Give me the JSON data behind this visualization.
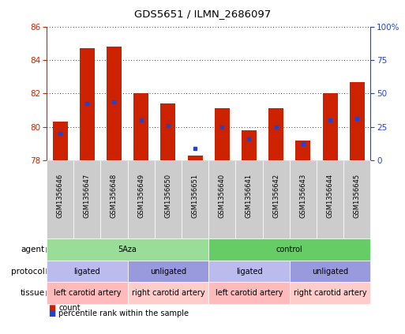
{
  "title": "GDS5651 / ILMN_2686097",
  "samples": [
    "GSM1356646",
    "GSM1356647",
    "GSM1356648",
    "GSM1356649",
    "GSM1356650",
    "GSM1356651",
    "GSM1356640",
    "GSM1356641",
    "GSM1356642",
    "GSM1356643",
    "GSM1356644",
    "GSM1356645"
  ],
  "bar_base": 78,
  "bar_tops": [
    80.3,
    84.7,
    84.8,
    82.0,
    81.4,
    78.3,
    81.1,
    79.8,
    81.1,
    79.2,
    82.0,
    82.7
  ],
  "blue_vals": [
    79.6,
    81.4,
    81.5,
    80.4,
    80.1,
    78.7,
    80.0,
    79.3,
    80.0,
    79.0,
    80.4,
    80.5
  ],
  "ylim": [
    78,
    86
  ],
  "yticks_left": [
    78,
    80,
    82,
    84,
    86
  ],
  "yticks_right": [
    0,
    25,
    50,
    75,
    100
  ],
  "bar_color": "#cc2200",
  "blue_color": "#2244cc",
  "bar_width": 0.55,
  "agent_labels": [
    {
      "text": "5Aza",
      "start": 0,
      "end": 5,
      "color": "#99dd99"
    },
    {
      "text": "control",
      "start": 6,
      "end": 11,
      "color": "#66cc66"
    }
  ],
  "protocol_labels": [
    {
      "text": "ligated",
      "start": 0,
      "end": 2,
      "color": "#bbbbee"
    },
    {
      "text": "unligated",
      "start": 3,
      "end": 5,
      "color": "#9999dd"
    },
    {
      "text": "ligated",
      "start": 6,
      "end": 8,
      "color": "#bbbbee"
    },
    {
      "text": "unligated",
      "start": 9,
      "end": 11,
      "color": "#9999dd"
    }
  ],
  "tissue_labels": [
    {
      "text": "left carotid artery",
      "start": 0,
      "end": 2,
      "color": "#ffbbbb"
    },
    {
      "text": "right carotid artery",
      "start": 3,
      "end": 5,
      "color": "#ffcccc"
    },
    {
      "text": "left carotid artery",
      "start": 6,
      "end": 8,
      "color": "#ffbbbb"
    },
    {
      "text": "right carotid artery",
      "start": 9,
      "end": 11,
      "color": "#ffcccc"
    }
  ],
  "row_labels": [
    "agent",
    "protocol",
    "tissue"
  ],
  "legend_count": "count",
  "legend_pct": "percentile rank within the sample",
  "bg_color": "#ffffff",
  "plot_bg": "#ffffff",
  "grid_color": "#000000",
  "axis_color_left": "#cc2200",
  "axis_color_right": "#2244cc",
  "tick_bg": "#cccccc"
}
